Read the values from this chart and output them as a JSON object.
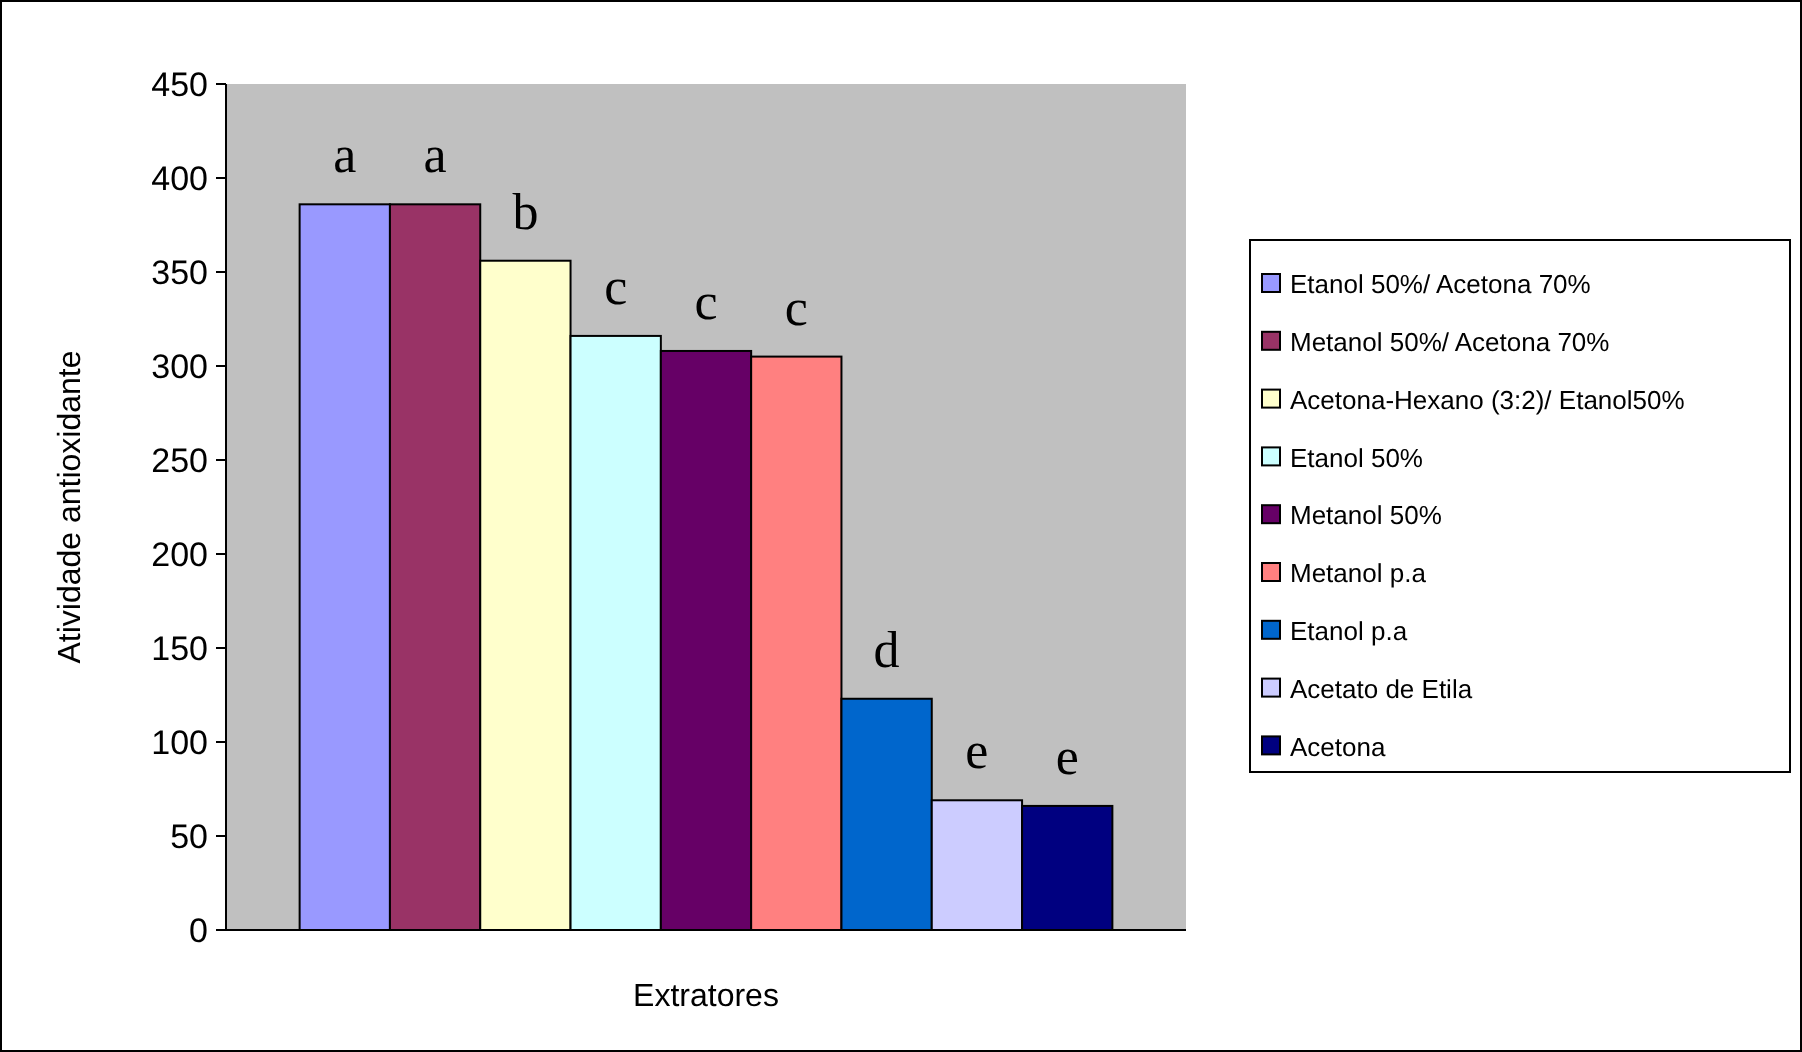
{
  "chart_data": {
    "type": "bar",
    "xlabel": "Extratores",
    "ylabel": "Atividade antioxidante",
    "categories": [
      null
    ],
    "series": [
      {
        "name": "Etanol 50%/ Acetona 70%",
        "color": "#9999ff",
        "values": [
          386
        ]
      },
      {
        "name": "Metanol 50%/ Acetona 70%",
        "color": "#993366",
        "values": [
          386
        ]
      },
      {
        "name": "Acetona-Hexano (3:2)/ Etanol50%",
        "color": "#ffffcc",
        "values": [
          356
        ]
      },
      {
        "name": "Etanol 50%",
        "color": "#ccffff",
        "values": [
          316
        ]
      },
      {
        "name": "Metanol 50%",
        "color": "#660066",
        "values": [
          308
        ]
      },
      {
        "name": "Metanol p.a",
        "color": "#ff8080",
        "values": [
          305
        ]
      },
      {
        "name": "Etanol p.a",
        "color": "#0066cc",
        "values": [
          123
        ]
      },
      {
        "name": "Acetato de Etila",
        "color": "#ccccff",
        "values": [
          69
        ]
      },
      {
        "name": "Acetona",
        "color": "#000080",
        "values": [
          66
        ]
      }
    ],
    "annotations": [
      {
        "text": "a",
        "y": 386
      },
      {
        "text": "a",
        "y": 386
      },
      {
        "text": "b",
        "y": 356
      },
      {
        "text": "c",
        "y": 316
      },
      {
        "text": "c",
        "y": 308
      },
      {
        "text": "c",
        "y": 305
      },
      {
        "text": "d",
        "y": 123
      },
      {
        "text": "e",
        "y": 69
      },
      {
        "text": "e",
        "y": 66
      }
    ],
    "ylim": [
      0,
      450
    ],
    "yticks": [
      0,
      50,
      100,
      150,
      200,
      250,
      300,
      350,
      400,
      450
    ],
    "grid": false,
    "legend": "right"
  }
}
